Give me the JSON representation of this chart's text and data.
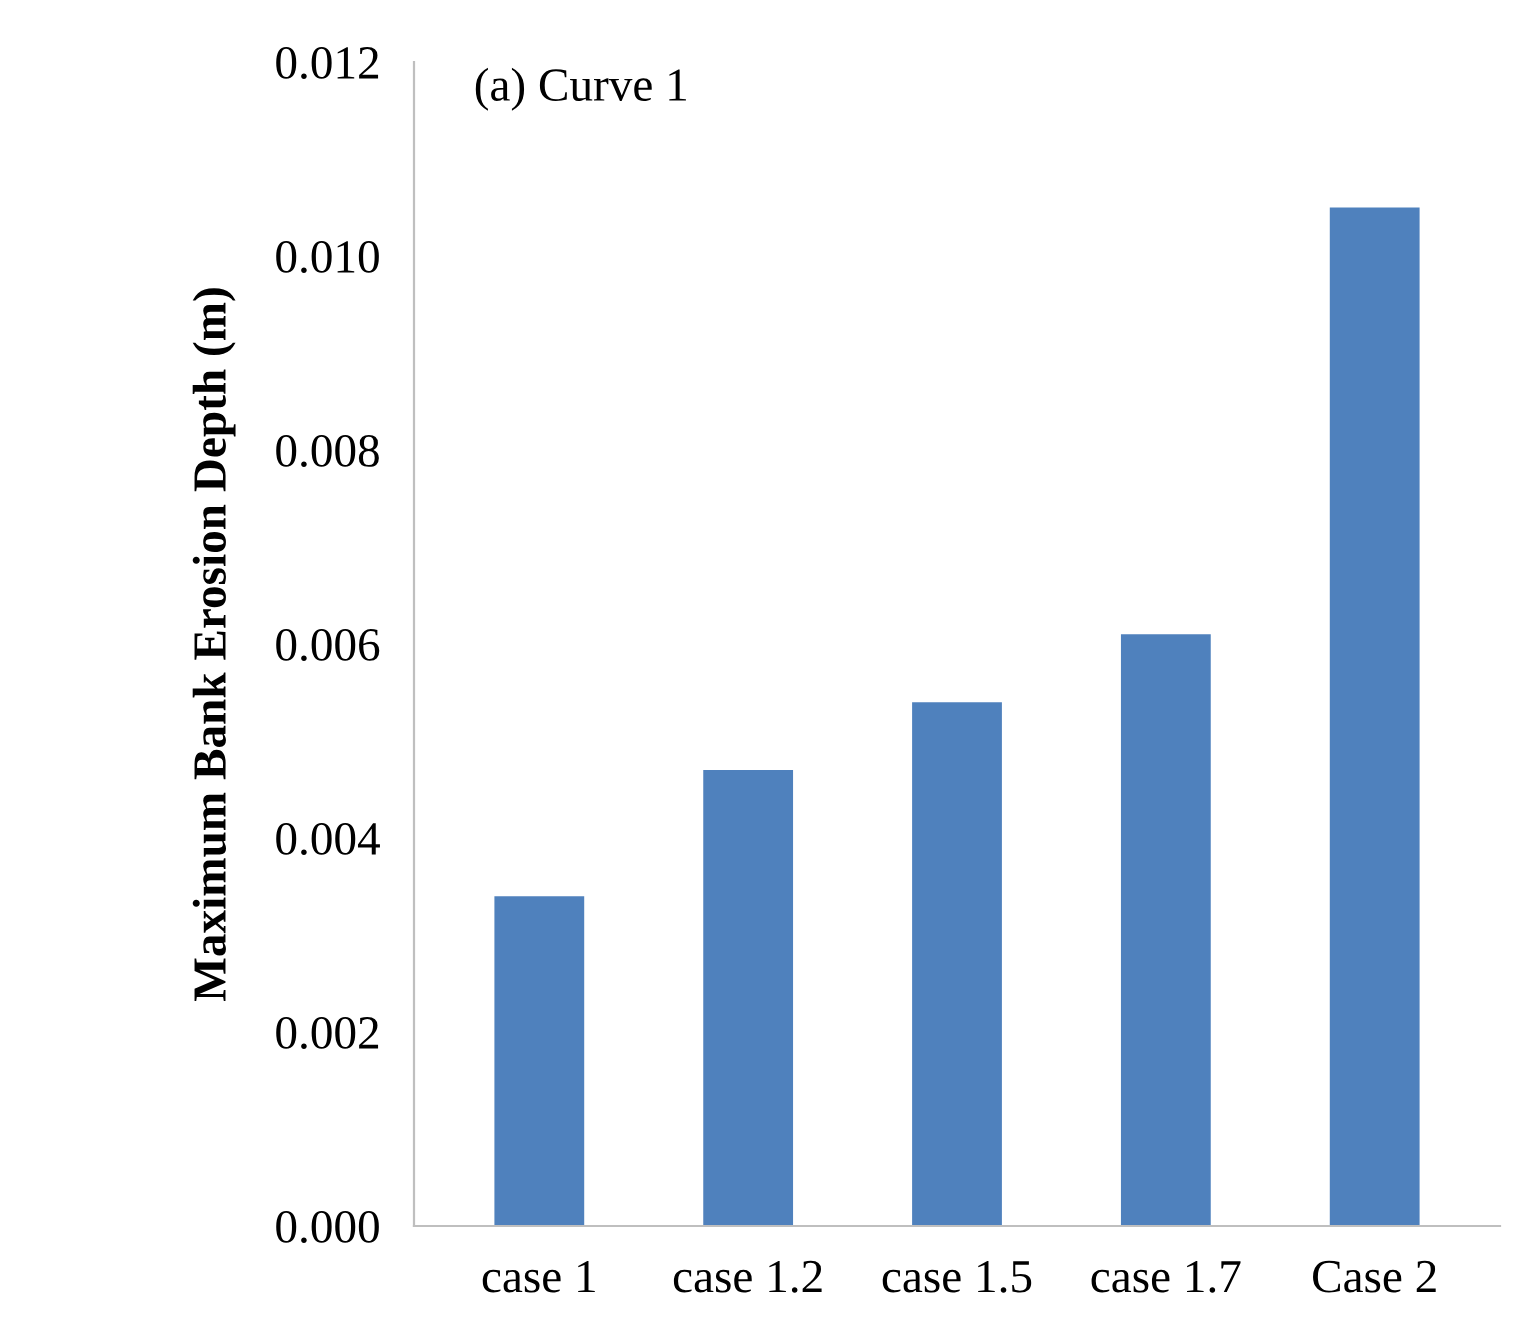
{
  "chart_data": {
    "type": "bar",
    "title": "(a) Curve 1",
    "ylabel": "Maximum Bank Erosion Depth (m)",
    "categories": [
      "case 1",
      "case 1.2",
      "case 1.5",
      "case 1.7",
      "Case 2"
    ],
    "values": [
      0.0034,
      0.0047,
      0.0054,
      0.0061,
      0.0105
    ],
    "color": "#4f81bd",
    "ylim": [
      0,
      0.012
    ],
    "yticks": [
      {
        "value": 0,
        "label": "0.000"
      },
      {
        "value": 0.002,
        "label": "0.002"
      },
      {
        "value": 0.004,
        "label": "0.004"
      },
      {
        "value": 0.006,
        "label": "0.006"
      },
      {
        "value": 0.008,
        "label": "0.008"
      },
      {
        "value": 0.01,
        "label": "0.010"
      },
      {
        "value": 0.012,
        "label": "0.012"
      }
    ],
    "grid": false,
    "legend": false
  }
}
